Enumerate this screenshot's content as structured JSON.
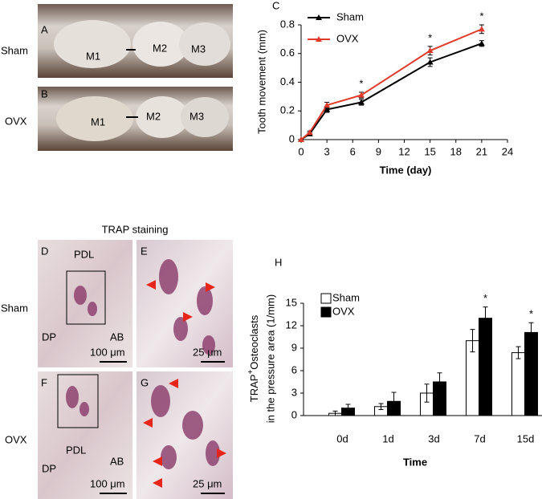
{
  "chart_data": [
    {
      "type": "line",
      "panel": "C",
      "xlabel": "Time (day)",
      "ylabel": "Tooth movement (mm)",
      "x": [
        0,
        1,
        3,
        7,
        15,
        21
      ],
      "series": [
        {
          "name": "Sham",
          "color": "#000000",
          "values": [
            0,
            0.04,
            0.21,
            0.26,
            0.54,
            0.67
          ],
          "errors": [
            0,
            0.01,
            0.02,
            0.02,
            0.03,
            0.02
          ]
        },
        {
          "name": "OVX",
          "color": "#e03a2a",
          "values": [
            0,
            0.05,
            0.24,
            0.31,
            0.62,
            0.77
          ],
          "errors": [
            0,
            0.01,
            0.02,
            0.02,
            0.03,
            0.03
          ]
        }
      ],
      "significance": [
        null,
        null,
        null,
        "*",
        "*",
        "*"
      ],
      "xlim": [
        0,
        24
      ],
      "xticks": [
        0,
        3,
        6,
        9,
        12,
        15,
        18,
        21,
        24
      ],
      "ylim": [
        0,
        0.8
      ],
      "yticks": [
        0,
        0.2,
        0.4,
        0.6,
        0.8
      ],
      "legend": "top-left"
    },
    {
      "type": "bar",
      "panel": "H",
      "xlabel": "Time",
      "ylabel": [
        "TRAP",
        "+",
        "Osteoclasts",
        "in the pressure area (1/mm)"
      ],
      "categories": [
        "0d",
        "1d",
        "3d",
        "7d",
        "15d"
      ],
      "series": [
        {
          "name": "Sham",
          "color": "#ffffff",
          "values": [
            0.3,
            1.2,
            3.0,
            10,
            8.4
          ],
          "errors": [
            0.3,
            0.4,
            1.2,
            1.5,
            0.8
          ]
        },
        {
          "name": "OVX",
          "color": "#000000",
          "values": [
            1.0,
            1.9,
            4.5,
            13,
            11.1
          ],
          "errors": [
            0.5,
            1.2,
            1.2,
            1.5,
            1.3
          ]
        }
      ],
      "significance": [
        null,
        null,
        null,
        "*",
        "*"
      ],
      "ylim": [
        0,
        15
      ],
      "yticks": [
        0,
        3,
        6,
        9,
        12,
        15
      ],
      "legend": "top-left"
    }
  ],
  "photos": {
    "row_labels_top": [
      "Sham",
      "OVX"
    ],
    "panels_top": [
      {
        "label": "A",
        "teeth": [
          "M1",
          "M2",
          "M3"
        ]
      },
      {
        "label": "B",
        "teeth": [
          "M1",
          "M2",
          "M3"
        ]
      }
    ],
    "staining_title": "TRAP staining",
    "row_labels_bottom": [
      "Sham",
      "OVX"
    ],
    "panels_bottom": [
      {
        "label": "D",
        "tissue": [
          "PDL",
          "DP",
          "AB"
        ],
        "scale": "100 μm"
      },
      {
        "label": "E",
        "scale": "25 μm"
      },
      {
        "label": "F",
        "tissue": [
          "PDL",
          "DP",
          "AB"
        ],
        "scale": "100 μm"
      },
      {
        "label": "G",
        "scale": "25 μm"
      }
    ]
  }
}
